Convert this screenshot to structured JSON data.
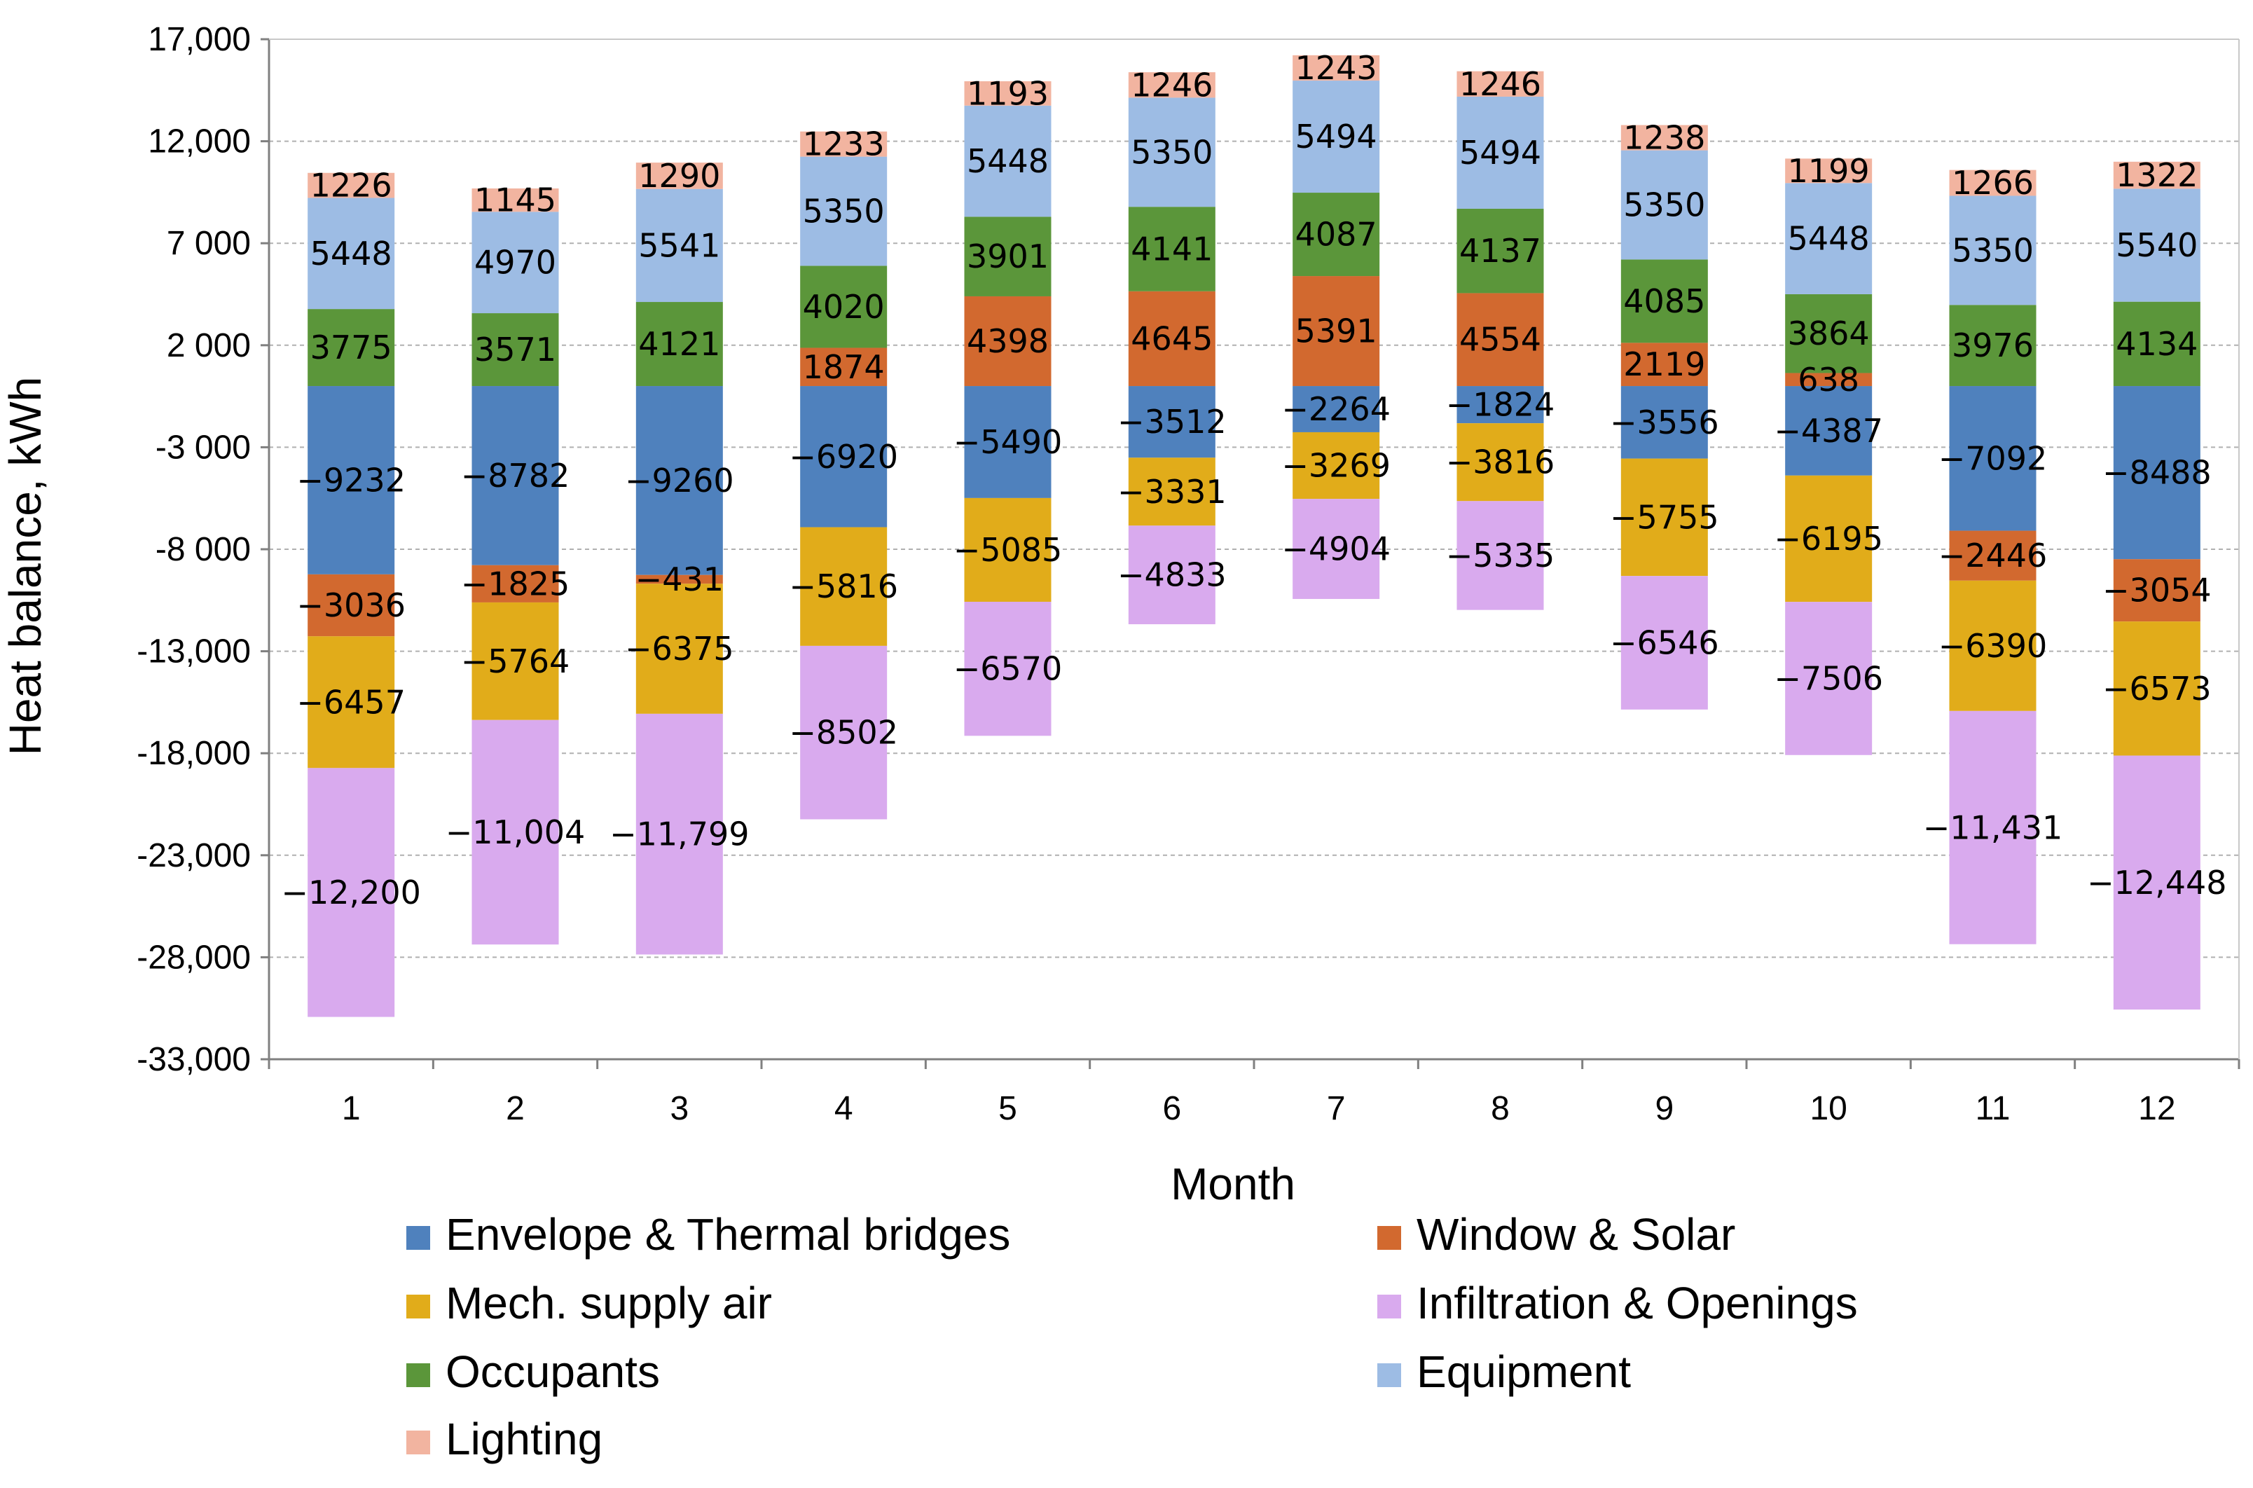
{
  "chart_data": {
    "type": "bar",
    "stacked": true,
    "title": "",
    "xlabel": "Month",
    "ylabel": "Heat balance, kWh",
    "ylim": [
      -33000,
      17000
    ],
    "grid": true,
    "legend_position": "bottom",
    "categories": [
      "1",
      "2",
      "3",
      "4",
      "5",
      "6",
      "7",
      "8",
      "9",
      "10",
      "11",
      "12"
    ],
    "y_ticks": [
      {
        "value": 17000,
        "label": "17,000"
      },
      {
        "value": 12000,
        "label": "12,000"
      },
      {
        "value": 7000,
        "label": "7 000"
      },
      {
        "value": 2000,
        "label": "2 000"
      },
      {
        "value": -3000,
        "label": "-3 000"
      },
      {
        "value": -8000,
        "label": "-8 000"
      },
      {
        "value": -13000,
        "label": "-13,000"
      },
      {
        "value": -18000,
        "label": "-18,000"
      },
      {
        "value": -23000,
        "label": "-23,000"
      },
      {
        "value": -28000,
        "label": "-28,000"
      },
      {
        "value": -33000,
        "label": "-33,000"
      }
    ],
    "series": [
      {
        "name": "Envelope & Thermal bridges",
        "color": "#4f81bd",
        "values": [
          -9232,
          -8782,
          -9260,
          -6920,
          -5490,
          -3512,
          -2264,
          -1824,
          -3556,
          -4387,
          -7092,
          -8488
        ],
        "labels": [
          "−9232",
          "−8782",
          "−9260",
          "−6920",
          "−5490",
          "−3512",
          "−2264",
          "−1824",
          "−3556",
          "−4387",
          "−7092",
          "−8488"
        ]
      },
      {
        "name": "Window & Solar",
        "color": "#d2692f",
        "values": [
          -3036,
          -1825,
          -431,
          1874,
          4398,
          4645,
          5391,
          4554,
          2119,
          638,
          -2446,
          -3054
        ],
        "labels": [
          "−3036",
          "−1825",
          "−431",
          "1874",
          "4398",
          "4645",
          "5391",
          "4554",
          "2119",
          "638",
          "−2446",
          "−3054"
        ]
      },
      {
        "name": "Mech. supply air",
        "color": "#e1ac1a",
        "values": [
          -6457,
          -5764,
          -6375,
          -5816,
          -5085,
          -3331,
          -3269,
          -3816,
          -5755,
          -6195,
          -6390,
          -6573
        ],
        "labels": [
          "−6457",
          "−5764",
          "−6375",
          "−5816",
          "−5085",
          "−3331",
          "−3269",
          "−3816",
          "−5755",
          "−6195",
          "−6390",
          "−6573"
        ]
      },
      {
        "name": "Infiltration & Openings",
        "color": "#d9aaee",
        "values": [
          -12200,
          -11004,
          -11799,
          -8502,
          -6570,
          -4833,
          -4904,
          -5335,
          -6546,
          -7506,
          -11431,
          -12448
        ],
        "labels": [
          "−12,200",
          "−11,004",
          "−11,799",
          "−8502",
          "−6570",
          "−4833",
          "−4904",
          "−5335",
          "−6546",
          "−7506",
          "−11,431",
          "−12,448"
        ]
      },
      {
        "name": "Occupants",
        "color": "#5b963a",
        "values": [
          3775,
          3571,
          4121,
          4020,
          3901,
          4141,
          4087,
          4137,
          4085,
          3864,
          3976,
          4134
        ],
        "labels": [
          "3775",
          "3571",
          "4121",
          "4020",
          "3901",
          "4141",
          "4087",
          "4137",
          "4085",
          "3864",
          "3976",
          "4134"
        ]
      },
      {
        "name": "Equipment",
        "color": "#9dbce4",
        "values": [
          5448,
          4970,
          5541,
          5350,
          5448,
          5350,
          5494,
          5494,
          5350,
          5448,
          5350,
          5540
        ],
        "labels": [
          "5448",
          "4970",
          "5541",
          "5350",
          "5448",
          "5350",
          "5494",
          "5494",
          "5350",
          "5448",
          "5350",
          "5540"
        ]
      },
      {
        "name": "Lighting",
        "color": "#f2b4a0",
        "values": [
          1226,
          1145,
          1290,
          1233,
          1193,
          1246,
          1243,
          1246,
          1238,
          1199,
          1266,
          1322
        ],
        "labels": [
          "1226",
          "1145",
          "1290",
          "1233",
          "1193",
          "1246",
          "1243",
          "1246",
          "1238",
          "1199",
          "1266",
          "1322"
        ]
      }
    ],
    "stack_order": [
      "Envelope & Thermal bridges",
      "Window & Solar",
      "Mech. supply air",
      "Infiltration & Openings",
      "Occupants",
      "Equipment",
      "Lighting"
    ],
    "legend": [
      "Envelope & Thermal bridges",
      "Window & Solar",
      "Mech. supply air",
      "Infiltration & Openings",
      "Occupants",
      "Equipment",
      "Lighting"
    ]
  }
}
